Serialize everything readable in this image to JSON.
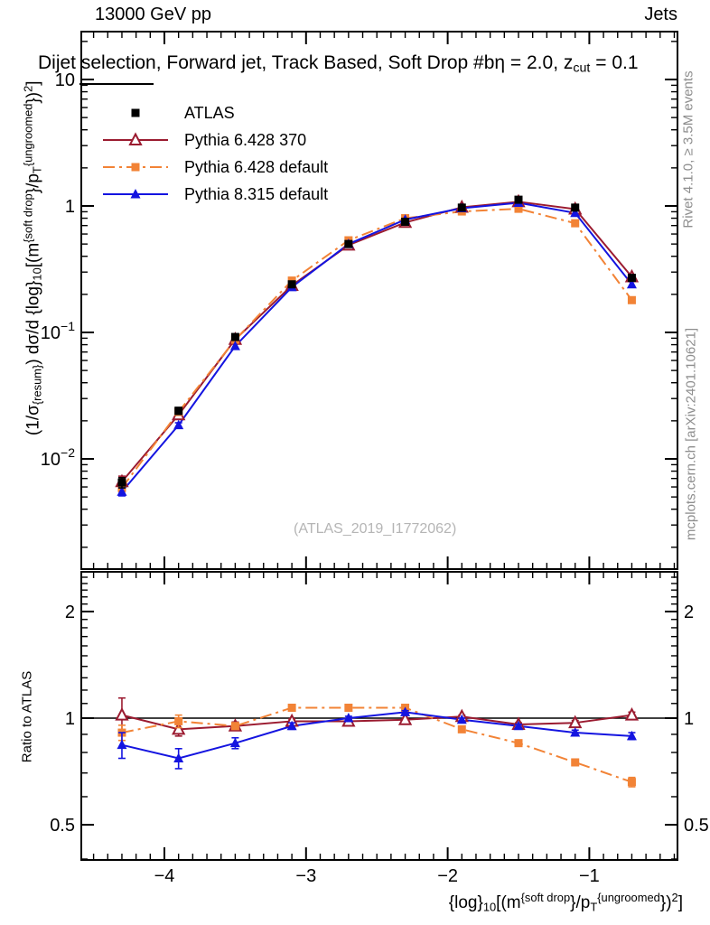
{
  "header": {
    "left_label": "13000 GeV pp",
    "right_label": "Jets"
  },
  "panel_title_parts": [
    {
      "t": "Dijet selection, Forward jet, Track Based, Soft Drop #bη = 2.0, z"
    },
    {
      "sub": "cut"
    },
    {
      "t": " = 0.1"
    }
  ],
  "watermark": "(ATLAS_2019_I1772062)",
  "side_notes": {
    "top_rotated": "Rivet 4.1.0, ≥ 3.5M events",
    "bottom_rotated": "mcplots.cern.ch [arXiv:2401.10621]"
  },
  "axis_labels": {
    "y_main_parts": [
      {
        "t": "(1/σ"
      },
      {
        "sub": "{resum}"
      },
      {
        "t": ") dσ/d {log}"
      },
      {
        "sub": "10"
      },
      {
        "t": "[(m"
      },
      {
        "sup": "{soft drop"
      },
      {
        "t": "}/p"
      },
      {
        "sub": "T"
      },
      {
        "sup": "{ungroomed"
      },
      {
        "t": "})"
      },
      {
        "sup": "2"
      },
      {
        "t": "]"
      }
    ],
    "y_ratio": "Ratio to ATLAS",
    "x_parts": [
      {
        "t": "{log}"
      },
      {
        "sub": "10"
      },
      {
        "t": "[(m"
      },
      {
        "sup": "{soft drop"
      },
      {
        "t": "}/p"
      },
      {
        "sub": "T"
      },
      {
        "sup": "{ungroomed"
      },
      {
        "t": "})"
      },
      {
        "sup": "2"
      },
      {
        "t": "]"
      }
    ]
  },
  "colors": {
    "atlas": "#000000",
    "pythia6_370": "#9b1b30",
    "pythia6_default": "#f28336",
    "pythia8_default": "#1414e0",
    "watermark": "#b5b5b5",
    "side_note": "#8e8e8e"
  },
  "chart_data": [
    {
      "type": "line",
      "panel": "main",
      "title": "Dijet selection, Forward jet, Track Based, Soft Drop #bη = 2.0, z_cut = 0.1",
      "xlabel": "{log}_10[(m^{soft drop}/p_T^{ungroomed})^2]",
      "ylabel": "(1/σ_{resum}) dσ/d {log}_10[(m^{soft drop}/p_T^{ungroomed})^2]",
      "yscale": "log",
      "xlim": [
        -4.59,
        -0.38
      ],
      "ylim": [
        0.00135,
        25
      ],
      "grid": false,
      "legend_position": "top-left",
      "x": [
        -4.3,
        -3.9,
        -3.5,
        -3.1,
        -2.7,
        -2.3,
        -1.9,
        -1.5,
        -1.1,
        -0.7
      ],
      "xticks": [
        {
          "v": -4,
          "label": "−4"
        },
        {
          "v": -3,
          "label": "−3"
        },
        {
          "v": -2,
          "label": "−2"
        },
        {
          "v": -1,
          "label": "−1"
        }
      ],
      "yticks": [
        {
          "v": 10,
          "base": "10",
          "exp": ""
        },
        {
          "v": 1,
          "base": "1",
          "exp": ""
        },
        {
          "v": 0.1,
          "base": "10",
          "exp": "−1"
        },
        {
          "v": 0.01,
          "base": "10",
          "exp": "−2"
        }
      ],
      "series": [
        {
          "name": "ATLAS",
          "color_key": "atlas",
          "marker": "square-filled",
          "line": "none",
          "values": [
            0.0065,
            0.024,
            0.092,
            0.24,
            0.5,
            0.75,
            0.97,
            1.12,
            0.97,
            0.27
          ],
          "errors": [
            0.0006,
            0.0015,
            0.004,
            0.007,
            0.009,
            0.011,
            0.012,
            0.013,
            0.012,
            0.008
          ]
        },
        {
          "name": "Pythia 6.428 370",
          "color_key": "pythia6_370",
          "marker": "triangle-open",
          "line": "solid",
          "values": [
            0.0066,
            0.0223,
            0.088,
            0.235,
            0.49,
            0.74,
            0.975,
            1.08,
            0.945,
            0.275
          ],
          "errors": [
            0.0007,
            0.0009,
            0.002,
            0.004,
            0.005,
            0.007,
            0.008,
            0.008,
            0.007,
            0.006
          ]
        },
        {
          "name": "Pythia 6.428 default",
          "color_key": "pythia6_default",
          "marker": "square-filled",
          "line": "dashdot",
          "values": [
            0.0059,
            0.0235,
            0.0875,
            0.257,
            0.535,
            0.8,
            0.905,
            0.95,
            0.73,
            0.18
          ],
          "errors": [
            0.0004,
            0.0009,
            0.002,
            0.004,
            0.005,
            0.006,
            0.007,
            0.007,
            0.006,
            0.004
          ]
        },
        {
          "name": "Pythia 8.315 default",
          "color_key": "pythia8_default",
          "marker": "triangle-filled",
          "line": "solid",
          "values": [
            0.0055,
            0.0185,
            0.078,
            0.228,
            0.5,
            0.78,
            0.96,
            1.06,
            0.88,
            0.24
          ],
          "errors": [
            0.0004,
            0.0008,
            0.0018,
            0.003,
            0.004,
            0.005,
            0.006,
            0.006,
            0.005,
            0.004
          ]
        }
      ]
    },
    {
      "type": "line",
      "panel": "ratio",
      "ylabel": "Ratio to ATLAS",
      "yscale": "log",
      "xlim": [
        -4.59,
        -0.38
      ],
      "ylim": [
        0.4,
        2.59
      ],
      "ref_line": 1,
      "x": [
        -4.3,
        -3.9,
        -3.5,
        -3.1,
        -2.7,
        -2.3,
        -1.9,
        -1.5,
        -1.1,
        -0.7
      ],
      "xticks": [
        {
          "v": -4,
          "label": "−4"
        },
        {
          "v": -3,
          "label": "−3"
        },
        {
          "v": -2,
          "label": "−2"
        },
        {
          "v": -1,
          "label": "−1"
        }
      ],
      "yticks": [
        {
          "v": 2,
          "label": "2"
        },
        {
          "v": 1,
          "label": "1"
        },
        {
          "v": 0.5,
          "label": "0.5"
        }
      ],
      "series": [
        {
          "name": "Pythia 6.428 370",
          "color_key": "pythia6_370",
          "marker": "triangle-open",
          "line": "solid",
          "values": [
            1.02,
            0.93,
            0.95,
            0.98,
            0.98,
            0.99,
            1.01,
            0.96,
            0.97,
            1.02
          ],
          "errors": [
            0.12,
            0.04,
            0.025,
            0.015,
            0.012,
            0.01,
            0.01,
            0.01,
            0.015,
            0.02
          ]
        },
        {
          "name": "Pythia 6.428 default",
          "color_key": "pythia6_default",
          "marker": "square-filled",
          "line": "dashdot",
          "values": [
            0.91,
            0.98,
            0.95,
            1.07,
            1.07,
            1.07,
            0.93,
            0.85,
            0.75,
            0.66
          ],
          "errors": [
            0.045,
            0.04,
            0.02,
            0.015,
            0.012,
            0.01,
            0.01,
            0.01,
            0.015,
            0.02
          ]
        },
        {
          "name": "Pythia 8.315 default",
          "color_key": "pythia8_default",
          "marker": "triangle-filled",
          "line": "solid",
          "values": [
            0.84,
            0.77,
            0.85,
            0.95,
            1.0,
            1.04,
            0.99,
            0.95,
            0.91,
            0.89
          ],
          "errors": [
            0.07,
            0.05,
            0.03,
            0.02,
            0.012,
            0.01,
            0.01,
            0.01,
            0.015,
            0.02
          ]
        }
      ]
    }
  ]
}
